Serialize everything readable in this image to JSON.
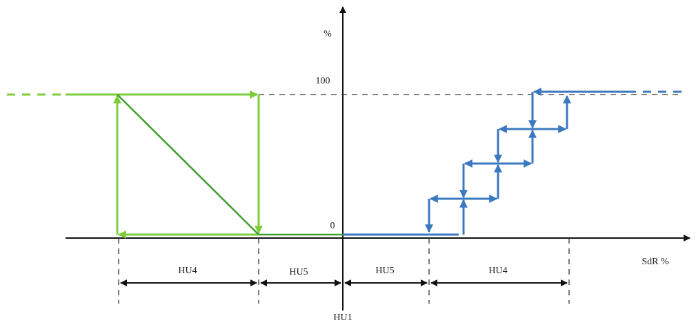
{
  "axes": {
    "y_label": "%",
    "y_top": 100,
    "y_zero": 0,
    "x_label": "SdR %"
  },
  "intervals": [
    "HU4",
    "HU5",
    "HU5",
    "HU4"
  ],
  "origin_label": "HU1"
}
